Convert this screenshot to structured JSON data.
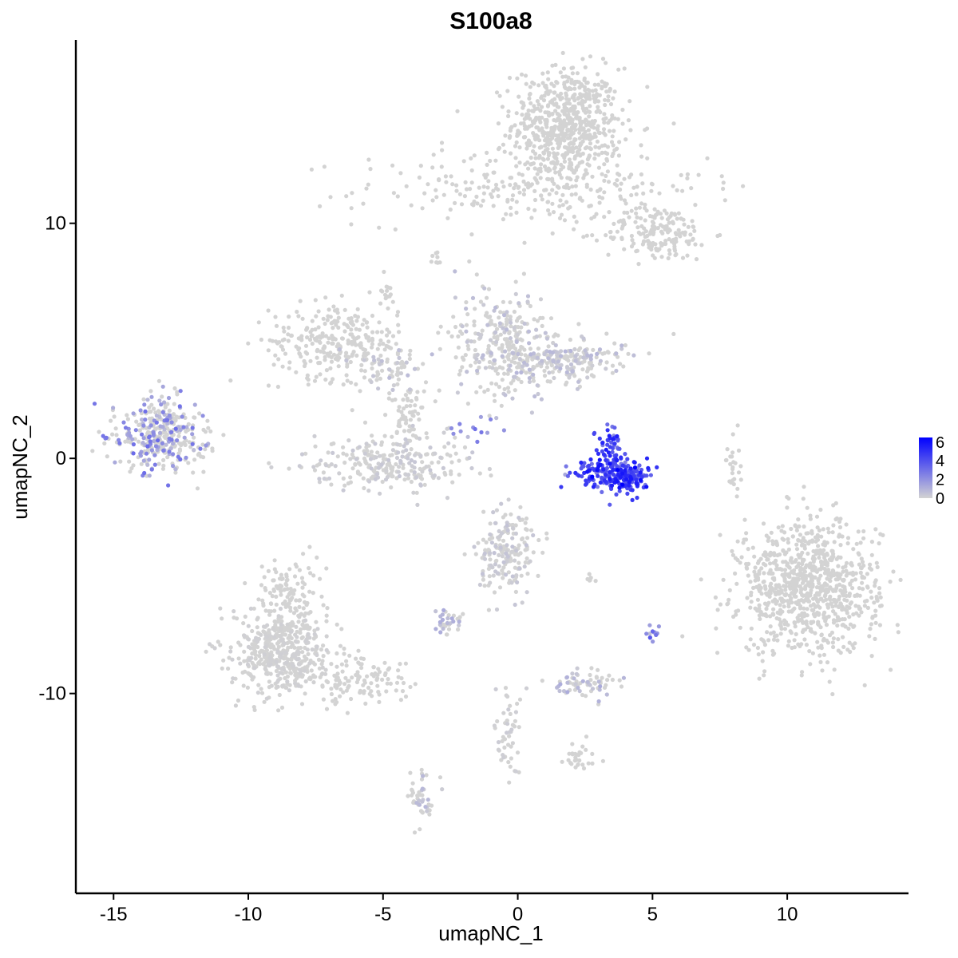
{
  "chart_data": {
    "type": "scatter",
    "title": "S100a8",
    "xlabel": "umapNC_1",
    "ylabel": "umapNC_2",
    "xlim": [
      -16.4,
      14.5
    ],
    "ylim": [
      -18.5,
      17.8
    ],
    "x_ticks": [
      -15,
      -10,
      -5,
      0,
      5,
      10
    ],
    "x_tick_labels": [
      "-15",
      "-10",
      "-5",
      "0",
      "5",
      "10"
    ],
    "y_ticks": [
      -10,
      0,
      10
    ],
    "y_tick_labels": [
      "-10",
      "0",
      "10"
    ],
    "grid": false,
    "legend": {
      "placement": "right",
      "type": "colorbar",
      "min": 0,
      "max": 6.5,
      "ticks": [
        0,
        2,
        4,
        6
      ],
      "tick_labels": [
        "0",
        "2",
        "4",
        "6"
      ],
      "low_color": "#d3d3d3",
      "high_color": "#0000ff"
    },
    "clusters": [
      {
        "cx": 1.8,
        "cy": 14.2,
        "sx": 1.0,
        "sy": 1.2,
        "n": 650,
        "expr": 0
      },
      {
        "cx": 0.5,
        "cy": 11.5,
        "sx": 3.2,
        "sy": 0.8,
        "n": 260,
        "expr": 0
      },
      {
        "cx": 5.2,
        "cy": 9.6,
        "sx": 1.0,
        "sy": 0.6,
        "n": 170,
        "expr": 0
      },
      {
        "cx": -6.8,
        "cy": 5.0,
        "sx": 1.2,
        "sy": 0.8,
        "n": 260,
        "expr": 0
      },
      {
        "cx": -4.8,
        "cy": 3.8,
        "sx": 0.7,
        "sy": 0.6,
        "n": 80,
        "expr": 0.3
      },
      {
        "cx": -4.8,
        "cy": -0.2,
        "sx": 1.5,
        "sy": 0.6,
        "n": 260,
        "expr": 0.15
      },
      {
        "cx": -4.2,
        "cy": 1.8,
        "sx": 0.4,
        "sy": 0.8,
        "n": 60,
        "expr": 0
      },
      {
        "cx": -0.5,
        "cy": 4.8,
        "sx": 0.9,
        "sy": 1.1,
        "n": 300,
        "expr": 0.3
      },
      {
        "cx": 1.8,
        "cy": 4.2,
        "sx": 1.1,
        "sy": 0.5,
        "n": 200,
        "expr": 0.35
      },
      {
        "cx": -13.3,
        "cy": 1.0,
        "sx": 0.8,
        "sy": 0.8,
        "n": 360,
        "expr": 1.3
      },
      {
        "cx": 3.9,
        "cy": -0.8,
        "sx": 0.45,
        "sy": 0.35,
        "n": 170,
        "expr": 4.5
      },
      {
        "cx": 3.4,
        "cy": 0.4,
        "sx": 0.25,
        "sy": 0.55,
        "n": 60,
        "expr": 4.3
      },
      {
        "cx": 2.8,
        "cy": -0.6,
        "sx": 0.5,
        "sy": 0.25,
        "n": 60,
        "expr": 4.2
      },
      {
        "cx": 10.8,
        "cy": -5.5,
        "sx": 1.3,
        "sy": 1.4,
        "n": 900,
        "expr": 0
      },
      {
        "cx": -8.8,
        "cy": -8.2,
        "sx": 0.9,
        "sy": 0.9,
        "n": 480,
        "expr": 0.05
      },
      {
        "cx": -8.5,
        "cy": -5.8,
        "sx": 0.6,
        "sy": 0.8,
        "n": 120,
        "expr": 0
      },
      {
        "cx": -6.0,
        "cy": -9.5,
        "sx": 1.0,
        "sy": 0.5,
        "n": 120,
        "expr": 0
      },
      {
        "cx": -0.4,
        "cy": -4.0,
        "sx": 0.5,
        "sy": 0.8,
        "n": 190,
        "expr": 0.2
      },
      {
        "cx": 2.4,
        "cy": -9.6,
        "sx": 0.6,
        "sy": 0.25,
        "n": 70,
        "expr": 0.5
      },
      {
        "cx": -2.6,
        "cy": -7.0,
        "sx": 0.3,
        "sy": 0.25,
        "n": 35,
        "expr": 0.5
      },
      {
        "cx": -3.5,
        "cy": -14.5,
        "sx": 0.25,
        "sy": 0.6,
        "n": 45,
        "expr": 0.4
      },
      {
        "cx": -0.3,
        "cy": -11.5,
        "sx": 0.3,
        "sy": 1.0,
        "n": 50,
        "expr": 0.1
      },
      {
        "cx": 2.2,
        "cy": -12.7,
        "sx": 0.35,
        "sy": 0.25,
        "n": 30,
        "expr": 0
      },
      {
        "cx": 8.0,
        "cy": -0.2,
        "sx": 0.15,
        "sy": 0.7,
        "n": 25,
        "expr": 0
      },
      {
        "cx": 5.0,
        "cy": -7.3,
        "sx": 0.15,
        "sy": 0.15,
        "n": 12,
        "expr": 2.0
      },
      {
        "cx": -1.6,
        "cy": 1.2,
        "sx": 0.6,
        "sy": 0.3,
        "n": 15,
        "expr": 2.0
      },
      {
        "cx": -4.8,
        "cy": 7.0,
        "sx": 0.15,
        "sy": 0.35,
        "n": 15,
        "expr": 0
      },
      {
        "cx": -3.0,
        "cy": 8.6,
        "sx": 0.1,
        "sy": 0.2,
        "n": 8,
        "expr": 0
      },
      {
        "cx": 2.8,
        "cy": -5.2,
        "sx": 0.15,
        "sy": 0.1,
        "n": 6,
        "expr": 0
      }
    ]
  }
}
